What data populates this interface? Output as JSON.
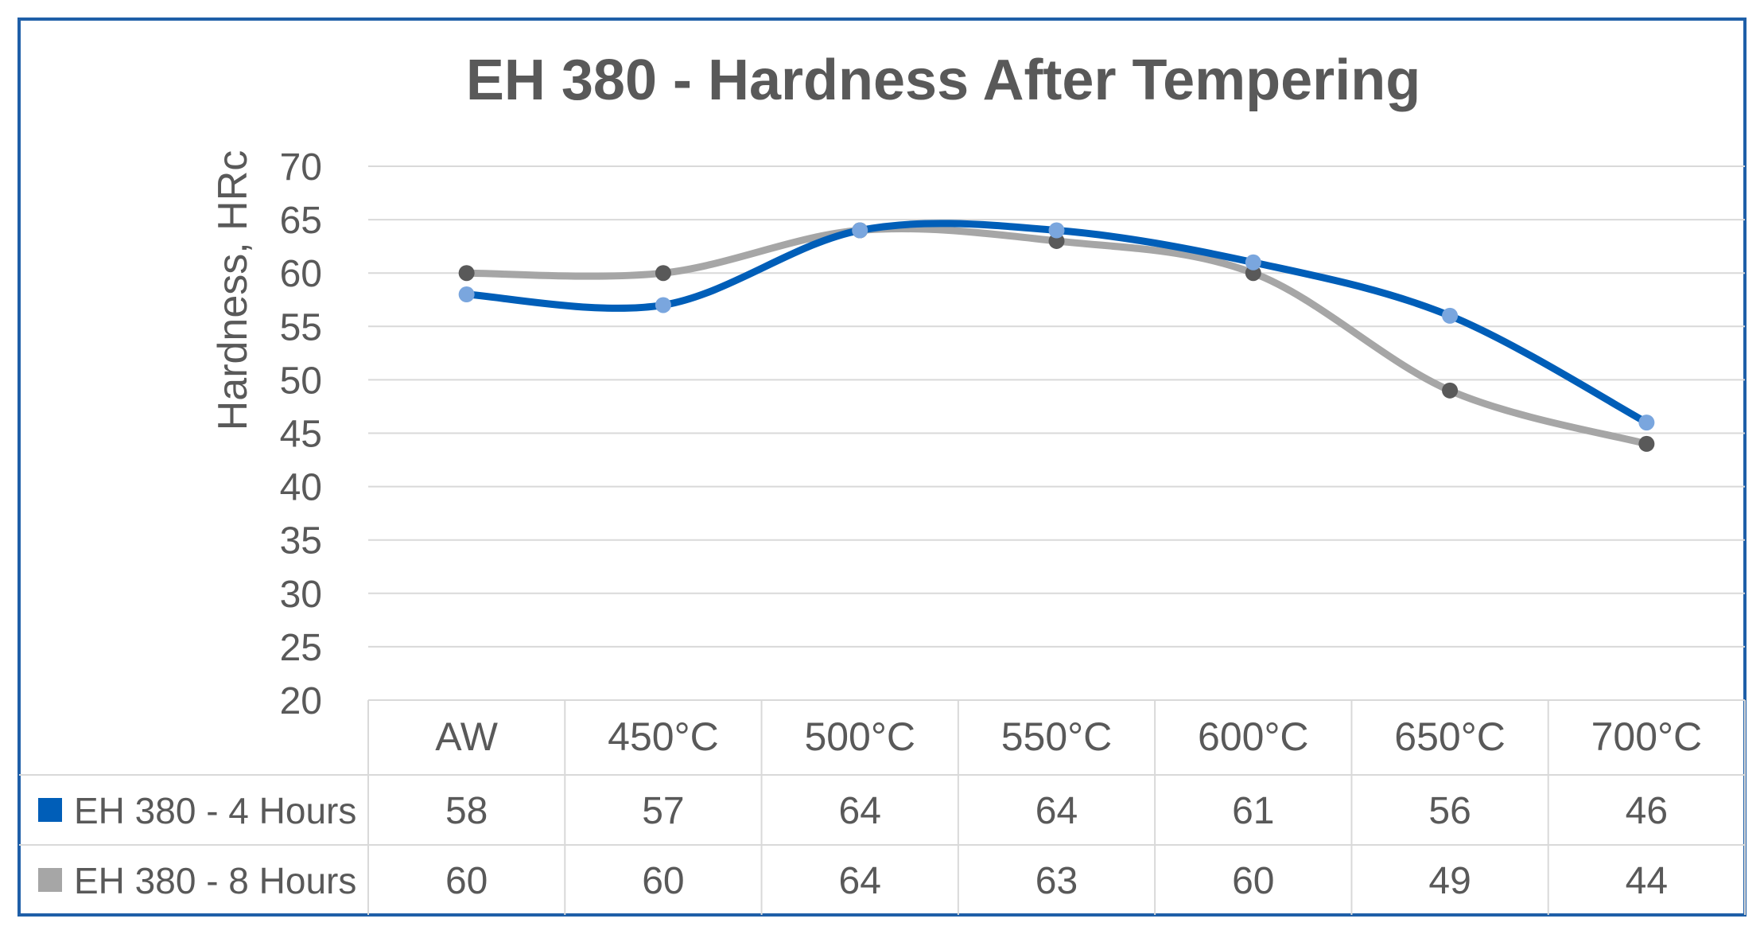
{
  "chart_data": {
    "type": "line",
    "title": "EH 380 - Hardness After Tempering",
    "ylabel": "Hardness, HRc",
    "xlabel": "",
    "ylim": [
      20,
      70
    ],
    "yticks": [
      "20",
      "25",
      "30",
      "35",
      "40",
      "45",
      "50",
      "55",
      "60",
      "65",
      "70"
    ],
    "categories": [
      "AW",
      "450°C",
      "500°C",
      "550°C",
      "600°C",
      "650°C",
      "700°C"
    ],
    "grid": "horizontal",
    "legend_placement": "data table below plot",
    "series": [
      {
        "name": "EH 380 - 4 Hours",
        "values": [
          58,
          57,
          64,
          64,
          61,
          56,
          46
        ],
        "line_color": "#005eb8",
        "marker_color": "#7aa6de"
      },
      {
        "name": "EH 380 - 8 Hours",
        "values": [
          60,
          60,
          64,
          63,
          60,
          49,
          44
        ],
        "line_color": "#a6a6a6",
        "marker_color": "#595959"
      }
    ],
    "data_table": {
      "rows": [
        {
          "series": "EH 380 - 4 Hours",
          "cells": [
            "58",
            "57",
            "64",
            "64",
            "61",
            "56",
            "46"
          ]
        },
        {
          "series": "EH 380 - 8 Hours",
          "cells": [
            "60",
            "60",
            "64",
            "63",
            "60",
            "49",
            "44"
          ]
        }
      ]
    }
  },
  "colors": {
    "frame_border": "#1f5fa8",
    "title_text": "#595959",
    "axis_text": "#595959",
    "gridline": "#d9d9d9"
  }
}
